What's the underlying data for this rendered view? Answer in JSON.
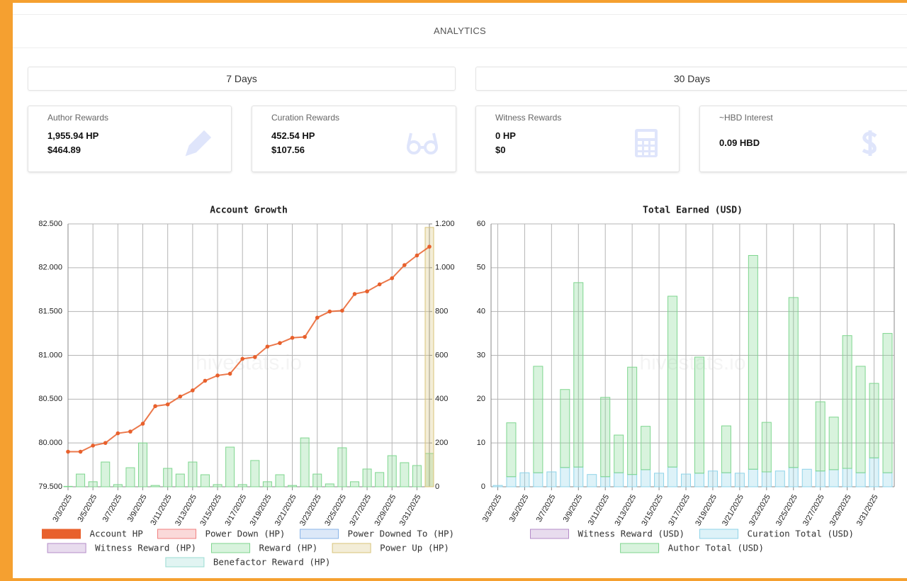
{
  "header": {
    "title": "ANALYTICS"
  },
  "ranges": [
    "7 Days",
    "30 Days"
  ],
  "cards": [
    {
      "label": "Author Rewards",
      "lines": [
        "1,955.94 HP",
        "$464.89"
      ]
    },
    {
      "label": "Curation Rewards",
      "lines": [
        "452.54 HP",
        "$107.56"
      ]
    },
    {
      "label": "Witness Rewards",
      "lines": [
        "0 HP",
        "$0"
      ]
    },
    {
      "label": "~HBD Interest",
      "lines": [
        "0.09 HBD"
      ]
    }
  ],
  "chart_data": [
    {
      "type": "combo",
      "title": "Account Growth",
      "watermark": "hivestats.io",
      "categories": [
        "3/3/2025",
        null,
        "3/5/2025",
        null,
        "3/7/2025",
        null,
        "3/9/2025",
        null,
        "3/11/2025",
        null,
        "3/13/2025",
        null,
        "3/15/2025",
        null,
        "3/17/2025",
        null,
        "3/19/2025",
        null,
        "3/21/2025",
        null,
        "3/23/2025",
        null,
        "3/25/2025",
        null,
        "3/27/2025",
        null,
        "3/29/2025",
        null,
        "3/31/2025",
        null
      ],
      "ylim": [
        79.5,
        82.5
      ],
      "yticks": [
        {
          "value": 79.5,
          "label": "79.500"
        },
        {
          "value": 80,
          "label": "80.000"
        },
        {
          "value": 80.5,
          "label": "80.500"
        },
        {
          "value": 81,
          "label": "81.000"
        },
        {
          "value": 81.5,
          "label": "81.500"
        },
        {
          "value": 82,
          "label": "82.000"
        },
        {
          "value": 82.5,
          "label": "82.500"
        }
      ],
      "y2lim": [
        0,
        1200
      ],
      "y2ticks": [
        0,
        200,
        400,
        600,
        800,
        {
          "value": 1000,
          "label": "1.000"
        },
        {
          "value": 1200,
          "label": "1.200"
        }
      ],
      "grid": true,
      "series": [
        {
          "name": "Account HP",
          "type": "line",
          "axis": "y",
          "color": "#e8602c",
          "values": [
            79.9,
            79.9,
            79.97,
            80.0,
            80.11,
            80.13,
            80.22,
            80.42,
            80.44,
            80.53,
            80.6,
            80.71,
            80.77,
            80.79,
            80.96,
            80.98,
            81.1,
            81.14,
            81.2,
            81.21,
            81.43,
            81.5,
            81.51,
            81.7,
            81.73,
            81.81,
            81.88,
            82.03,
            82.14,
            82.24
          ]
        },
        {
          "name": "Power Down (HP)",
          "type": "bar",
          "axis": "y2",
          "color": "#f08080",
          "values": [
            0,
            0,
            0,
            0,
            0,
            0,
            0,
            0,
            0,
            0,
            0,
            0,
            0,
            0,
            0,
            0,
            0,
            0,
            0,
            0,
            0,
            0,
            0,
            0,
            0,
            0,
            0,
            0,
            0,
            0
          ]
        },
        {
          "name": "Power Downed To (HP)",
          "type": "bar",
          "axis": "y2",
          "color": "#8ab4e8",
          "values": [
            0,
            0,
            0,
            0,
            0,
            0,
            0,
            0,
            0,
            0,
            0,
            0,
            0,
            0,
            0,
            0,
            0,
            0,
            0,
            0,
            0,
            0,
            0,
            0,
            0,
            0,
            0,
            0,
            0,
            0
          ]
        },
        {
          "name": "Witness Reward (HP)",
          "type": "bar",
          "axis": "y2",
          "color": "#b48cc8",
          "values": [
            0,
            0,
            0,
            0,
            0,
            0,
            0,
            0,
            0,
            0,
            0,
            0,
            0,
            0,
            0,
            0,
            0,
            0,
            0,
            0,
            0,
            0,
            0,
            0,
            0,
            0,
            0,
            0,
            0,
            0
          ]
        },
        {
          "name": "Reward (HP)",
          "type": "bar",
          "axis": "y2",
          "color": "#7fd68f",
          "values": [
            2,
            58,
            23,
            113,
            10,
            87,
            200,
            6,
            84,
            58,
            113,
            55,
            10,
            181,
            10,
            120,
            23,
            55,
            6,
            223,
            58,
            13,
            178,
            23,
            81,
            65,
            142,
            110,
            97,
            152
          ]
        },
        {
          "name": "Power Up (HP)",
          "type": "bar",
          "axis": "y2",
          "color": "#d8c47a",
          "values": [
            0,
            0,
            0,
            0,
            0,
            0,
            0,
            0,
            0,
            0,
            0,
            0,
            0,
            0,
            0,
            0,
            0,
            0,
            0,
            0,
            0,
            0,
            0,
            0,
            0,
            0,
            0,
            0,
            0,
            1184
          ]
        },
        {
          "name": "Benefactor Reward (HP)",
          "type": "bar",
          "axis": "y2",
          "color": "#9adcd3",
          "values": [
            0,
            0,
            0,
            0,
            0,
            0,
            0,
            0,
            0,
            0,
            0,
            0,
            0,
            0,
            0,
            0,
            0,
            0,
            0,
            0,
            0,
            0,
            0,
            0,
            0,
            0,
            0,
            0,
            0,
            0
          ]
        }
      ]
    },
    {
      "type": "stacked-bar",
      "title": "Total Earned (USD)",
      "watermark": "hivestats.io",
      "categories": [
        "3/3/2025",
        null,
        "3/5/2025",
        null,
        "3/7/2025",
        null,
        "3/9/2025",
        null,
        "3/11/2025",
        null,
        "3/13/2025",
        null,
        "3/15/2025",
        null,
        "3/17/2025",
        null,
        "3/19/2025",
        null,
        "3/21/2025",
        null,
        "3/23/2025",
        null,
        "3/25/2025",
        null,
        "3/27/2025",
        null,
        "3/29/2025",
        null,
        "3/31/2025",
        null
      ],
      "ylim": [
        0,
        60
      ],
      "yticks": [
        0,
        10,
        20,
        30,
        40,
        50,
        60
      ],
      "grid": true,
      "series": [
        {
          "name": "Witness Reward (USD)",
          "color": "#b48cc8",
          "values": [
            0,
            0,
            0,
            0,
            0,
            0,
            0,
            0,
            0,
            0,
            0,
            0,
            0,
            0,
            0,
            0,
            0,
            0,
            0,
            0,
            0,
            0,
            0,
            0,
            0,
            0,
            0,
            0,
            0,
            0
          ]
        },
        {
          "name": "Curation Total (USD)",
          "color": "#8fd3e8",
          "values": [
            0.3,
            2.3,
            3.2,
            3.2,
            3.4,
            4.4,
            4.5,
            2.8,
            2.3,
            3.2,
            2.8,
            3.9,
            3.1,
            4.5,
            2.9,
            3.1,
            3.6,
            3.2,
            3.1,
            4.0,
            3.4,
            3.6,
            4.4,
            4.0,
            3.6,
            3.9,
            4.2,
            3.2,
            6.6,
            3.2
          ]
        },
        {
          "name": "Author Total (USD)",
          "color": "#7fd68f",
          "values": [
            0,
            12.3,
            0,
            24.3,
            0,
            17.8,
            42.1,
            0,
            18.1,
            8.6,
            24.5,
            9.9,
            0,
            39.0,
            0,
            26.5,
            0,
            10.7,
            0,
            48.8,
            11.3,
            0,
            38.8,
            0,
            15.8,
            12.0,
            30.3,
            24.3,
            17.0,
            31.8
          ]
        }
      ]
    }
  ]
}
